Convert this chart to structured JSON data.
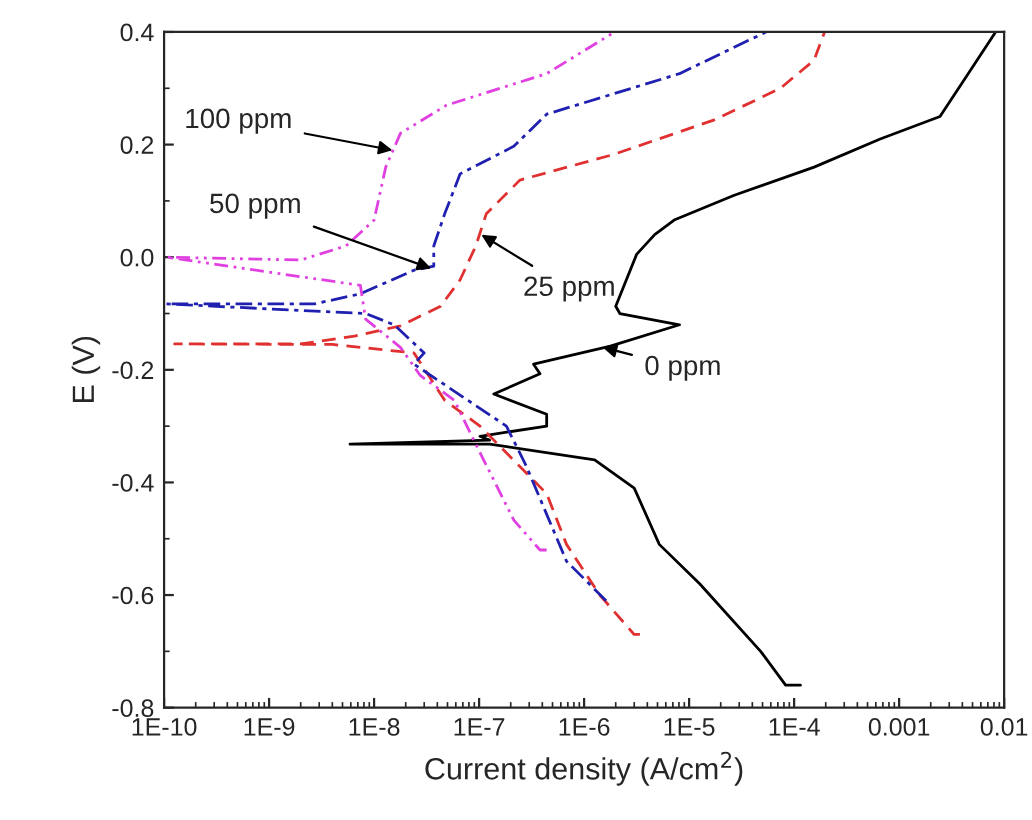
{
  "chart_data": {
    "type": "line",
    "xlabel": "Current density (A/cm$^{2}$)",
    "ylabel": "E (V)",
    "log": "x",
    "xlim": [
      1e-10,
      0.01
    ],
    "ylim": [
      -0.8,
      0.4
    ],
    "xticks": [
      {
        "value": 1e-10,
        "label": "1E-10"
      },
      {
        "value": 1e-09,
        "label": "1E-9"
      },
      {
        "value": 1e-08,
        "label": "1E-8"
      },
      {
        "value": 1e-07,
        "label": "1E-7"
      },
      {
        "value": 1e-06,
        "label": "1E-6"
      },
      {
        "value": 1e-05,
        "label": "1E-5"
      },
      {
        "value": 0.0001,
        "label": "1E-4"
      },
      {
        "value": 0.001,
        "label": "0.001"
      },
      {
        "value": 0.01,
        "label": "0.01"
      }
    ],
    "yticks": [
      {
        "value": -0.8,
        "label": "-0.8"
      },
      {
        "value": -0.6,
        "label": "-0.6"
      },
      {
        "value": -0.4,
        "label": "-0.4"
      },
      {
        "value": -0.2,
        "label": "-0.2"
      },
      {
        "value": 0.0,
        "label": "0.0"
      },
      {
        "value": 0.2,
        "label": "0.2"
      },
      {
        "value": 0.4,
        "label": "0.4"
      }
    ],
    "grid": false,
    "legend": false,
    "series": [
      {
        "color": "#000000",
        "line_style": "solid",
        "x": [
          0.000115,
          8.3e-05,
          4.8e-05,
          1.26e-05,
          5.2e-06,
          3e-06,
          1.26e-06,
          1.26e-07,
          5.9e-09,
          1.26e-07,
          1.02e-07,
          4.4e-07,
          4.4e-07,
          1.38e-07,
          3.8e-07,
          3.3e-07,
          1.78e-06,
          8.1e-06,
          2.19e-06,
          2e-06,
          3.16e-06,
          4.7e-06,
          7.2e-06,
          2.69e-05,
          0.000155,
          0.00066,
          0.00245,
          0.0051,
          0.0083
        ],
        "values": [
          -0.76,
          -0.76,
          -0.7,
          -0.58,
          -0.51,
          -0.41,
          -0.36,
          -0.332,
          -0.332,
          -0.325,
          -0.318,
          -0.3,
          -0.279,
          -0.243,
          -0.207,
          -0.19,
          -0.158,
          -0.12,
          -0.1,
          -0.087,
          0.005,
          0.04,
          0.066,
          0.11,
          0.16,
          0.21,
          0.25,
          0.34,
          0.4
        ]
      },
      {
        "color": "#e03030",
        "line_style": "dashed",
        "x": [
          3.4e-06,
          3e-06,
          1.41e-06,
          6.8e-07,
          4.4e-07,
          1.02e-07,
          4.7e-08,
          2.4e-08,
          4e-09,
          1.26e-10,
          2e-09,
          6.5e-09,
          1.78e-08,
          4.3e-08,
          6.6e-08,
          9.3e-08,
          1.17e-07,
          2.45e-07,
          1.95e-06,
          1.74e-05,
          7.4e-05,
          0.000155,
          0.000195
        ],
        "values": [
          -0.67,
          -0.67,
          -0.6,
          -0.51,
          -0.42,
          -0.3,
          -0.254,
          -0.17,
          -0.155,
          -0.154,
          -0.154,
          -0.14,
          -0.122,
          -0.087,
          -0.04,
          0.02,
          0.077,
          0.137,
          0.183,
          0.244,
          0.3,
          0.35,
          0.4
        ]
      },
      {
        "color": "#2020b0",
        "line_style": "dashdot",
        "x": [
          1.62e-06,
          6.8e-07,
          2.8e-07,
          1.82e-07,
          2.4e-08,
          3e-08,
          1.55e-08,
          8.3e-09,
          1.05e-10,
          2.7e-09,
          7.4e-09,
          2.4e-08,
          3.7e-08,
          3.7e-08,
          4.7e-08,
          6.6e-08,
          2.14e-07,
          4.4e-07,
          8.1e-06,
          5.4e-05
        ],
        "values": [
          -0.61,
          -0.54,
          -0.37,
          -0.3,
          -0.19,
          -0.17,
          -0.12,
          -0.1,
          -0.083,
          -0.083,
          -0.065,
          -0.023,
          -0.016,
          0.02,
          0.077,
          0.148,
          0.197,
          0.254,
          0.326,
          0.4
        ]
      },
      {
        "color": "#e040e0",
        "line_style": "dotted",
        "x": [
          4.4e-07,
          3.8e-07,
          2.14e-07,
          8.9e-08,
          5.8e-08,
          2.75e-08,
          1.78e-08,
          8.3e-09,
          7.4e-09,
          1.05e-10,
          2e-09,
          5.4e-09,
          1e-08,
          1.29e-08,
          1.78e-08,
          4.9e-08,
          4.4e-07,
          1.95e-06
        ],
        "values": [
          -0.52,
          -0.52,
          -0.467,
          -0.325,
          -0.254,
          -0.21,
          -0.16,
          -0.11,
          -0.05,
          0.0,
          -0.005,
          0.02,
          0.066,
          0.16,
          0.22,
          0.27,
          0.326,
          0.4
        ]
      }
    ],
    "annotations": [
      {
        "text": "100 ppm",
        "x": 1.5e-08,
        "y": 0.19
      },
      {
        "text": "50 ppm",
        "x": 3.5e-08,
        "y": -0.02
      },
      {
        "text": "25 ppm",
        "x": 1.05e-07,
        "y": 0.04
      },
      {
        "text": "0 ppm",
        "x": 1.5e-06,
        "y": -0.16
      }
    ]
  }
}
